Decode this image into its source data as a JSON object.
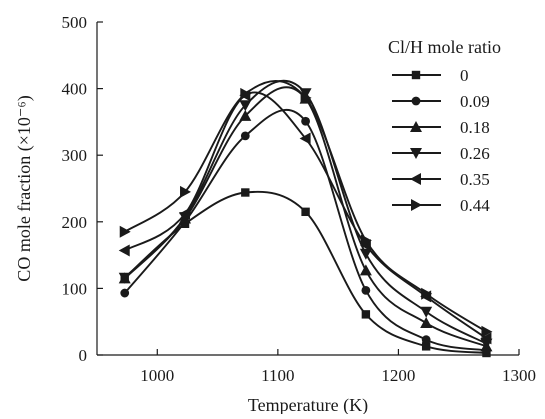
{
  "chart_data": {
    "type": "line",
    "xlabel": "Temperature (K)",
    "ylabel": "CO mole fraction (×10⁻⁶)",
    "xlim": [
      950,
      1300
    ],
    "ylim": [
      0,
      500
    ],
    "x_ticks": [
      1000,
      1100,
      1200,
      1300
    ],
    "y_ticks": [
      0,
      100,
      200,
      300,
      400,
      500
    ],
    "grid": false,
    "legend_title": "Cl/H mole ratio",
    "legend_position": "top-right",
    "line_color": "#1a1a1a",
    "series": [
      {
        "name": "0",
        "marker": "square",
        "x": [
          973,
          1023,
          1073,
          1123,
          1173,
          1223,
          1273
        ],
        "y": [
          116,
          197,
          244,
          215,
          61,
          13,
          3
        ]
      },
      {
        "name": "0.09",
        "marker": "circle",
        "x": [
          973,
          1023,
          1073,
          1123,
          1173,
          1223,
          1273
        ],
        "y": [
          93,
          200,
          329,
          351,
          97,
          23,
          7
        ]
      },
      {
        "name": "0.18",
        "marker": "triangle-up",
        "x": [
          973,
          1023,
          1073,
          1123,
          1173,
          1223,
          1273
        ],
        "y": [
          115,
          205,
          359,
          385,
          127,
          48,
          13
        ]
      },
      {
        "name": "0.26",
        "marker": "triangle-down",
        "x": [
          973,
          1023,
          1073,
          1123,
          1173,
          1223,
          1273
        ],
        "y": [
          116,
          207,
          375,
          393,
          152,
          65,
          17
        ]
      },
      {
        "name": "0.35",
        "marker": "triangle-left",
        "x": [
          973,
          1023,
          1073,
          1123,
          1173,
          1223,
          1273
        ],
        "y": [
          157,
          212,
          390,
          325,
          165,
          88,
          25
        ]
      },
      {
        "name": "0.44",
        "marker": "triangle-right",
        "x": [
          973,
          1023,
          1073,
          1123,
          1173,
          1223,
          1273
        ],
        "y": [
          185,
          245,
          392,
          386,
          172,
          92,
          35
        ]
      }
    ]
  }
}
